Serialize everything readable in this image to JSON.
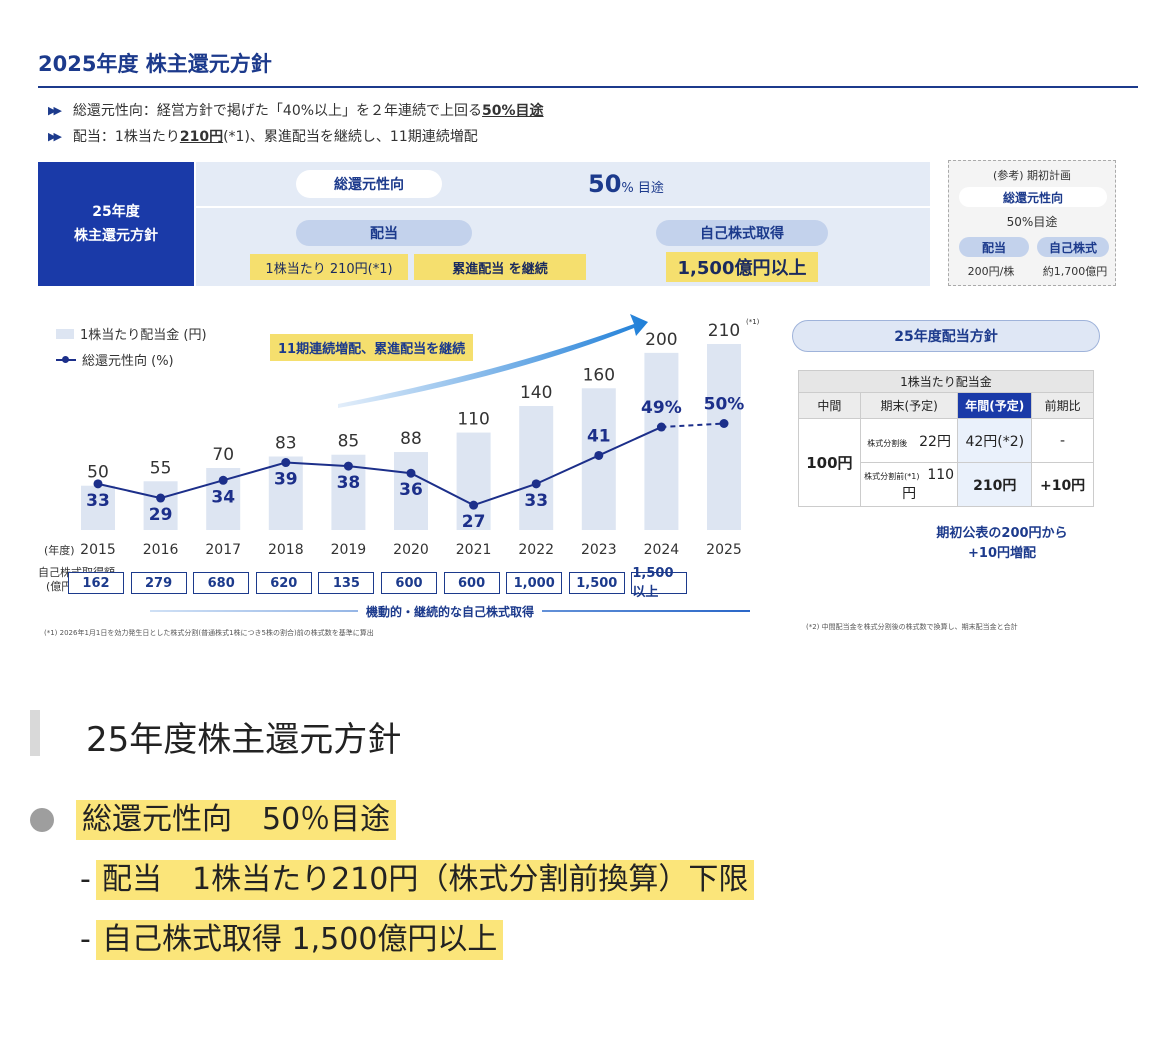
{
  "slide": {
    "title": "2025年度 株主還元方針",
    "bullets": [
      {
        "prefix": "総還元性向：経営方針で掲げた「40%以上」を２年連続で上回る",
        "emph": "50%目途",
        "rest": ""
      },
      {
        "prefix": "配当：1株当たり",
        "emph": "210円",
        "rest": "(*1)、累進配当を継続し、11期連続増配"
      }
    ],
    "policy": {
      "label_line1": "25年度",
      "label_line2": "株主還元方針",
      "payout_pill": "総還元性向",
      "payout_value": "50",
      "payout_unit": "% 目途",
      "dividend_pill": "配当",
      "dividend_per_share": "1株当たり 210円(*1)",
      "progressive": "累進配当 を継続",
      "buyback_pill": "自己株式取得",
      "buyback_value": "1,500億円以上"
    },
    "reference": {
      "title": "(参考) 期初計画",
      "payout_label": "総還元性向",
      "payout_value": "50%目途",
      "dividend_label": "配当",
      "buyback_label": "自己株式",
      "dividend_value": "200円/株",
      "buyback_value": "約1,700億円"
    },
    "legend": {
      "bar": "1株当たり配当金 (円)",
      "line": "総還元性向 (%)"
    },
    "arrow_note": "11期連続増配、累進配当を継続",
    "year_axis_label": "(年度)",
    "buyback_row_label_1": "自己株式取得額",
    "buyback_row_label_2": "(億円)",
    "buyback_amounts": [
      "162",
      "279",
      "680",
      "620",
      "135",
      "600",
      "600",
      "1,000",
      "1,500",
      "1,500以上"
    ],
    "buyback_caption": "機動的・継続的な自己株式取得",
    "footnote1": "(*1) 2026年1月1日を効力発生日とした株式分割(普通株式1株につき5株の割合)前の株式数を基準に算出",
    "right_panel": {
      "heading": "25年度配当方針",
      "table_title": "1株当たり配当金",
      "col_interim": "中間",
      "col_yearend": "期末(予定)",
      "col_annual": "年間(予定)",
      "col_yoy": "前期比",
      "interim_value": "100円",
      "row_after_label": "株式分割後",
      "row_after_yearend": "22円",
      "row_after_annual": "42円(*2)",
      "row_after_yoy": "-",
      "row_before_label": "株式分割前(*1)",
      "row_before_yearend": "110円",
      "row_before_annual": "210円",
      "row_before_yoy": "+10円",
      "note_line1": "期初公表の200円から",
      "note_line2": "+10円増配",
      "footnote2": "(*2) 中間配当金を株式分割後の株式数で換算し、期末配当金と合計"
    }
  },
  "summary": {
    "title": "25年度株主還元方針",
    "line1": "総還元性向　50％目途",
    "dash": "-",
    "line2": "配当　1株当たり210円（株式分割前換算）下限",
    "line3": "自己株式取得 1,500億円以上"
  },
  "chart_data": {
    "type": "bar",
    "categories": [
      "2015",
      "2016",
      "2017",
      "2018",
      "2019",
      "2020",
      "2021",
      "2022",
      "2023",
      "2024",
      "2025"
    ],
    "series": [
      {
        "name": "1株当たり配当金 (円)",
        "type": "bar",
        "values": [
          50,
          55,
          70,
          83,
          85,
          88,
          110,
          140,
          160,
          200,
          210
        ],
        "labels": [
          "50",
          "55",
          "70",
          "83",
          "85",
          "88",
          "110",
          "140",
          "160",
          "200",
          "210"
        ]
      },
      {
        "name": "総還元性向 (%)",
        "type": "line",
        "values": [
          33,
          29,
          34,
          39,
          38,
          36,
          27,
          33,
          41,
          49,
          50
        ],
        "labels": [
          "33",
          "29",
          "34",
          "39",
          "38",
          "36",
          "27",
          "33",
          "41",
          "49%",
          "50%"
        ]
      }
    ],
    "bar_annotation_2025": "(*1)",
    "xlabel": "(年度)",
    "colors": {
      "bar": "#dde5f2",
      "line": "#1c2f8a"
    }
  }
}
